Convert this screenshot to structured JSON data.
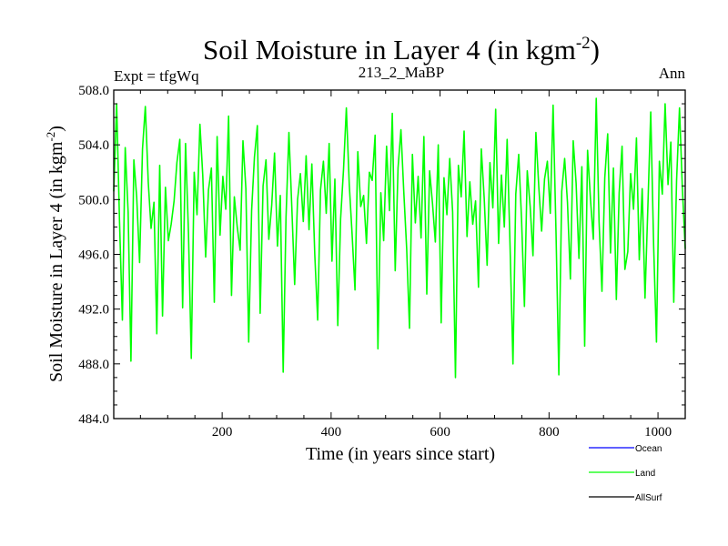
{
  "chart_data": {
    "type": "line",
    "title": "Soil Moisture in Layer 4 (in kgm",
    "title_sup": "-2",
    "title_end": ")",
    "subtitle_left": "Expt = tfgWq",
    "subtitle_center": "213_2_MaBP",
    "subtitle_right": "Ann",
    "xlabel": "Time (in years since start)",
    "ylabel": "Soil Moisture in Layer 4 (in kgm",
    "ylabel_sup": "-2",
    "ylabel_end": ")",
    "xlim": [
      1,
      1050
    ],
    "ylim": [
      484.0,
      508.0
    ],
    "xticks": [
      200,
      400,
      600,
      800,
      1000
    ],
    "xtick_labels": [
      "200",
      "400",
      "600",
      "800",
      "1000"
    ],
    "yticks": [
      484,
      488,
      492,
      496,
      500,
      504,
      508
    ],
    "ytick_labels": [
      "484.0",
      "488.0",
      "492.0",
      "496.0",
      "500.0",
      "504.0",
      "508.0"
    ],
    "series": [
      {
        "name": "Ocean",
        "color": "#0000ff",
        "values": []
      },
      {
        "name": "Land",
        "color": "#00ff00",
        "values": [
          500.6,
          507.0,
          498.5,
          491.2,
          503.8,
          499.1,
          488.2,
          502.9,
          500.2,
          495.4,
          503.7,
          506.8,
          501.3,
          497.9,
          499.8,
          490.2,
          502.5,
          491.5,
          500.9,
          497.0,
          498.2,
          499.9,
          502.7,
          504.4,
          492.1,
          504.1,
          497.6,
          488.4,
          502.0,
          498.9,
          505.5,
          501.8,
          495.8,
          500.7,
          502.3,
          492.5,
          504.6,
          497.4,
          501.7,
          499.3,
          506.1,
          493.0,
          500.2,
          498.0,
          496.3,
          504.3,
          500.8,
          489.6,
          499.2,
          503.1,
          505.4,
          491.7,
          501.0,
          502.9,
          497.1,
          499.6,
          503.4,
          496.6,
          500.3,
          487.4,
          498.7,
          504.9,
          499.4,
          493.8,
          500.0,
          501.9,
          498.4,
          503.2,
          497.8,
          502.6,
          496.0,
          491.2,
          500.7,
          502.8,
          499.0,
          504.1,
          495.5,
          501.5,
          490.8,
          498.6,
          502.2,
          506.7,
          501.1,
          497.5,
          493.4,
          503.5,
          499.5,
          500.3,
          496.8,
          502.0,
          501.4,
          504.7,
          489.1,
          500.5,
          497.0,
          503.9,
          499.2,
          506.3,
          494.8,
          502.3,
          505.1,
          500.6,
          496.4,
          490.6,
          503.3,
          498.3,
          501.7,
          497.2,
          504.6,
          493.1,
          502.1,
          499.7,
          496.9,
          504.0,
          491.0,
          501.6,
          498.9,
          503.0,
          499.1,
          487.0,
          502.5,
          500.2,
          505.0,
          497.3,
          501.3,
          498.2,
          499.9,
          493.6,
          503.7,
          500.1,
          495.2,
          502.7,
          499.4,
          506.6,
          496.8,
          501.8,
          498.0,
          504.4,
          496.6,
          488.0,
          500.4,
          503.3,
          498.6,
          492.2,
          502.1,
          499.5,
          495.9,
          504.9,
          500.9,
          497.7,
          501.5,
          502.8,
          499.0,
          506.9,
          497.6,
          487.2,
          500.6,
          503.0,
          499.8,
          494.2,
          504.3,
          501.2,
          495.7,
          502.4,
          489.3,
          503.6,
          500.0,
          497.1,
          507.4,
          498.4,
          493.3,
          501.6,
          504.8,
          496.1,
          502.3,
          492.7,
          500.5,
          503.9,
          494.9,
          496.2,
          501.9,
          499.3,
          504.5,
          495.6,
          500.8,
          492.8,
          499.6,
          506.4,
          496.6,
          489.6,
          502.8,
          500.4,
          507.0,
          501.1,
          504.2,
          492.5,
          501.4,
          506.7,
          500.9,
          496.4
        ]
      },
      {
        "name": "AllSurf",
        "color": "#000000",
        "values": []
      }
    ],
    "legend_position": "bottom-right",
    "grid": false
  }
}
